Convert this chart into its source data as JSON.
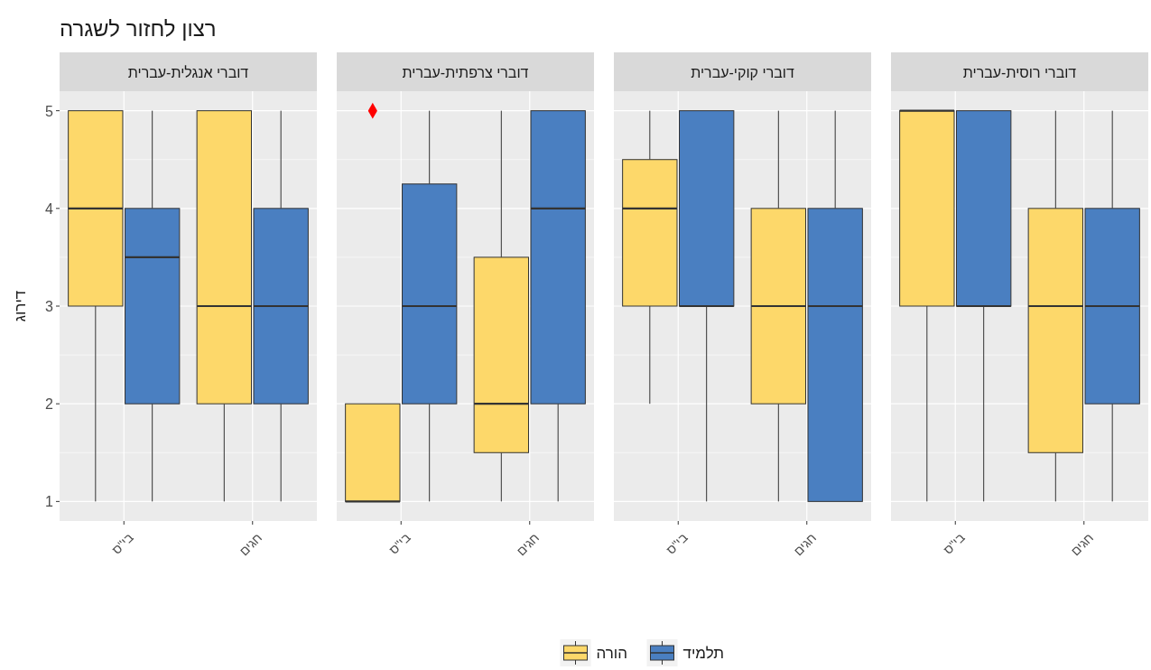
{
  "chart_data": [
    {
      "type": "box",
      "title": "רצון לחזור לשגרה",
      "subtitle": "דוברי אנגלית-עברית",
      "ylabel": "דירוג",
      "categories": [
        "בי\"ס",
        "חגים"
      ],
      "ylim": [
        0.8,
        5.2
      ],
      "yticks": [
        1,
        2,
        3,
        4,
        5
      ],
      "grid": true,
      "legend": "bottom",
      "tick_labels": "xy",
      "series": [
        {
          "name": "הורה",
          "color": "#fdd86a",
          "boxes": [
            {
              "low": 1,
              "q1": 3,
              "median": 4,
              "q3": 5,
              "high": 5
            },
            {
              "low": 1,
              "q1": 2,
              "median": 3,
              "q3": 5,
              "high": 5
            }
          ]
        },
        {
          "name": "תלמיד",
          "color": "#4a7fc1",
          "boxes": [
            {
              "low": 1,
              "q1": 2,
              "median": 3.5,
              "q3": 4,
              "high": 5
            },
            {
              "low": 1,
              "q1": 2,
              "median": 3,
              "q3": 4,
              "high": 5
            }
          ]
        }
      ]
    },
    {
      "type": "box",
      "subtitle": "דוברי צרפתית-עברית",
      "categories": [
        "בי\"ס",
        "חגים"
      ],
      "ylim": [
        0.8,
        5.2
      ],
      "yticks": [
        1,
        2,
        3,
        4,
        5
      ],
      "grid": true,
      "tick_labels": "x",
      "series": [
        {
          "color": "#fdd86a",
          "boxes": [
            {
              "low": 1,
              "q1": 1,
              "median": 1,
              "q3": 2,
              "high": 2,
              "outliers": [
                5
              ]
            },
            {
              "low": 1,
              "q1": 1.5,
              "median": 2,
              "q3": 3.5,
              "high": 5
            }
          ]
        },
        {
          "color": "#4a7fc1",
          "boxes": [
            {
              "low": 1,
              "q1": 2,
              "median": 3,
              "q3": 4.25,
              "high": 5
            },
            {
              "low": 1,
              "q1": 2,
              "median": 4,
              "q3": 5,
              "high": 5
            }
          ]
        }
      ]
    },
    {
      "type": "box",
      "subtitle": "דוברי קוקי-עברית",
      "categories": [
        "בי\"ס",
        "חגים"
      ],
      "ylim": [
        0.8,
        5.2
      ],
      "yticks": [
        1,
        2,
        3,
        4,
        5
      ],
      "grid": true,
      "tick_labels": "x",
      "series": [
        {
          "color": "#fdd86a",
          "boxes": [
            {
              "low": 2,
              "q1": 3,
              "median": 4,
              "q3": 4.5,
              "high": 5
            },
            {
              "low": 1,
              "q1": 2,
              "median": 3,
              "q3": 4,
              "high": 5
            }
          ]
        },
        {
          "color": "#4a7fc1",
          "boxes": [
            {
              "low": 1,
              "q1": 3,
              "median": 3,
              "q3": 5,
              "high": 5
            },
            {
              "low": 1,
              "q1": 1,
              "median": 3,
              "q3": 4,
              "high": 5
            }
          ]
        }
      ]
    },
    {
      "type": "box",
      "subtitle": "דוברי רוסית-עברית",
      "categories": [
        "בי\"ס",
        "חגים"
      ],
      "ylim": [
        0.8,
        5.2
      ],
      "yticks": [
        1,
        2,
        3,
        4,
        5
      ],
      "grid": true,
      "tick_labels": "x",
      "series": [
        {
          "color": "#fdd86a",
          "boxes": [
            {
              "low": 1,
              "q1": 3,
              "median": 5,
              "q3": 5,
              "high": 5
            },
            {
              "low": 1,
              "q1": 1.5,
              "median": 3,
              "q3": 4,
              "high": 5
            }
          ]
        },
        {
          "color": "#4a7fc1",
          "boxes": [
            {
              "low": 1,
              "q1": 3,
              "median": 3,
              "q3": 5,
              "high": 5
            },
            {
              "low": 1,
              "q1": 2,
              "median": 3,
              "q3": 4,
              "high": 5
            }
          ]
        }
      ]
    }
  ]
}
